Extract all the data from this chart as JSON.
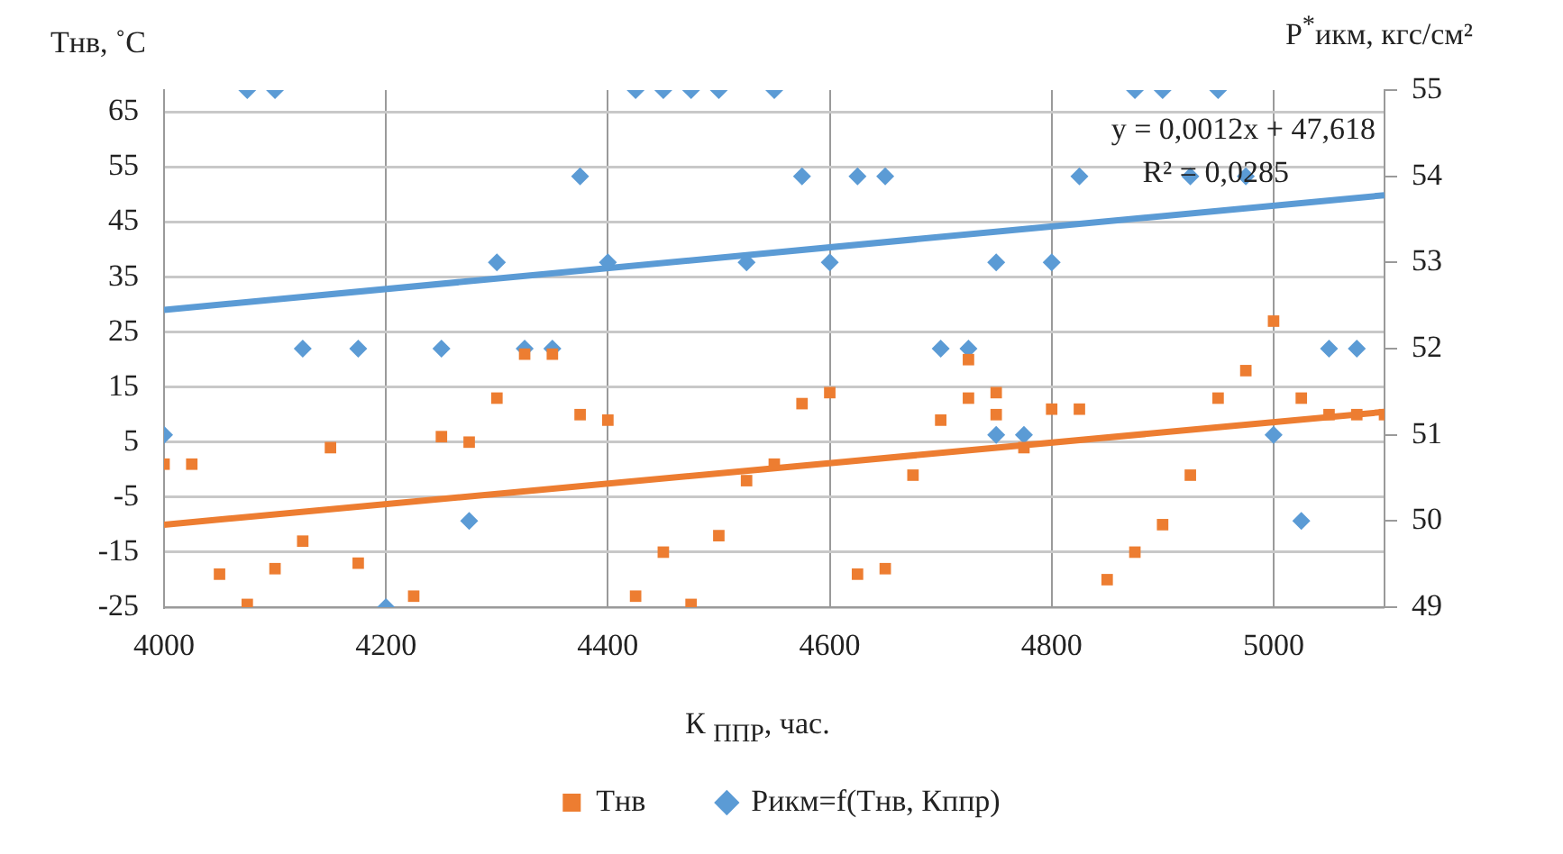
{
  "chart_data": {
    "type": "scatter",
    "xlabel": "К $_{ППР}$, час.",
    "ylabel": "Тнв, ˚С",
    "y2label": "P$^{*}$икм, кгс/см²",
    "annotations": [
      "y = 0,0012x + 47,618",
      "R² = 0,0285"
    ],
    "xlim": [
      4000,
      5100
    ],
    "xticks": [
      4000,
      4200,
      4400,
      4600,
      4800,
      5000
    ],
    "ylim": [
      -25,
      69
    ],
    "yticks": [
      -25,
      -15,
      -5,
      5,
      15,
      25,
      35,
      45,
      55,
      65
    ],
    "y2lim": [
      49,
      55
    ],
    "y2ticks": [
      49,
      50,
      51,
      52,
      53,
      54,
      55
    ],
    "grid": true,
    "legend": "bottom",
    "series": [
      {
        "name": "Тнв",
        "color": "#ed7d31",
        "marker": "square",
        "x": [
          4000,
          4025,
          4050,
          4075,
          4100,
          4125,
          4150,
          4175,
          4225,
          4250,
          4275,
          4300,
          4325,
          4350,
          4375,
          4400,
          4425,
          4450,
          4475,
          4500,
          4525,
          4550,
          4575,
          4600,
          4625,
          4650,
          4675,
          4700,
          4725,
          4725,
          4750,
          4750,
          4775,
          4800,
          4825,
          4850,
          4875,
          4900,
          4925,
          4950,
          4975,
          5000,
          5025,
          5050,
          5075,
          5100
        ],
        "values": [
          1,
          1,
          -19,
          -24.5,
          -18,
          -13,
          4,
          -17,
          -23,
          6,
          5,
          13,
          21,
          21,
          10,
          9,
          -23,
          -15,
          -24.5,
          -12,
          -2,
          1,
          12,
          14,
          -19,
          -18,
          -1,
          9,
          20,
          13,
          14,
          10,
          4,
          11,
          11,
          -20,
          -15,
          -10,
          -1,
          13,
          18,
          27,
          13,
          10,
          10,
          10
        ]
      },
      {
        "name": "Рикм=f(Тнв, Кппр)",
        "color": "#5b9bd5",
        "marker": "diamond",
        "axis": "y2",
        "x": [
          4000,
          4075,
          4100,
          4125,
          4175,
          4200,
          4250,
          4275,
          4300,
          4325,
          4350,
          4375,
          4400,
          4425,
          4450,
          4475,
          4500,
          4525,
          4550,
          4575,
          4600,
          4625,
          4650,
          4700,
          4725,
          4750,
          4750,
          4775,
          4800,
          4825,
          4875,
          4900,
          4925,
          4950,
          4975,
          5000,
          5025,
          5050,
          5075
        ],
        "values": [
          51,
          55,
          55,
          52,
          52,
          49,
          52,
          50,
          53,
          52,
          52,
          54,
          53,
          55,
          55,
          55,
          55,
          53,
          55,
          54,
          53,
          54,
          54,
          52,
          52,
          53,
          51,
          51,
          53,
          54,
          55,
          55,
          54,
          55,
          54,
          51,
          50,
          52,
          52
        ]
      },
      {
        "type": "line",
        "color": "#ed7d31",
        "x": [
          4000,
          5100
        ],
        "values": [
          -10,
          10.5
        ]
      },
      {
        "type": "line",
        "color": "#5b9bd5",
        "axis": "y2",
        "x": [
          4000,
          5100
        ],
        "values": [
          52.45,
          53.78
        ]
      }
    ]
  }
}
